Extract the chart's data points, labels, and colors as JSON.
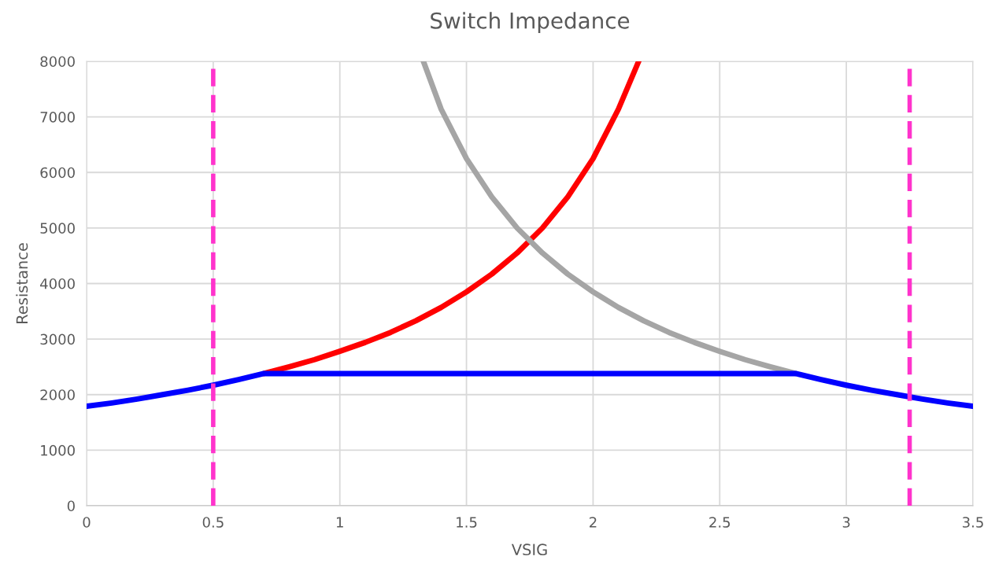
{
  "chart_data": {
    "type": "line",
    "title": "Switch Impedance",
    "xlabel": "VSIG",
    "ylabel": "Resistance",
    "xlim": [
      0,
      3.5
    ],
    "xticks": [
      0,
      0.5,
      1,
      1.5,
      2,
      2.5,
      3,
      3.5
    ],
    "ylim": [
      0,
      8000
    ],
    "yticks": [
      0,
      1000,
      2000,
      3000,
      4000,
      5000,
      6000,
      7000,
      8000
    ],
    "grid": true,
    "marker": "none",
    "line_style": "solid",
    "series": [
      {
        "color": "#ff0000",
        "x": [
          0.7,
          0.8,
          0.9,
          1.0,
          1.1,
          1.2,
          1.3,
          1.4,
          1.5,
          1.6,
          1.7,
          1.8,
          1.9,
          2.0,
          2.1,
          2.18
        ],
        "values": [
          2380,
          2500,
          2630,
          2780,
          2940,
          3120,
          3330,
          3570,
          3850,
          4170,
          4550,
          5000,
          5560,
          6250,
          7140,
          8000
        ]
      },
      {
        "color": "#a5a5a5",
        "x": [
          1.33,
          1.4,
          1.5,
          1.6,
          1.7,
          1.8,
          1.9,
          2.0,
          2.1,
          2.2,
          2.3,
          2.4,
          2.5,
          2.6,
          2.7,
          2.8
        ],
        "values": [
          8000,
          7140,
          6250,
          5560,
          5000,
          4550,
          4170,
          3850,
          3570,
          3330,
          3120,
          2940,
          2780,
          2630,
          2500,
          2380
        ]
      },
      {
        "color": "#0000ff",
        "x": [
          0,
          0.1,
          0.2,
          0.3,
          0.4,
          0.5,
          0.6,
          0.7,
          2.8,
          2.9,
          3.0,
          3.1,
          3.2,
          3.3,
          3.4,
          3.5
        ],
        "values": [
          1790,
          1850,
          1920,
          2000,
          2080,
          2170,
          2270,
          2380,
          2380,
          2270,
          2170,
          2080,
          2000,
          1920,
          1850,
          1790
        ]
      }
    ],
    "ref_lines": [
      {
        "axis": "x",
        "value": 0.5,
        "color": "#ff33cc",
        "line_style": "dashed"
      },
      {
        "axis": "x",
        "value": 3.25,
        "color": "#ff33cc",
        "line_style": "dashed"
      }
    ]
  }
}
